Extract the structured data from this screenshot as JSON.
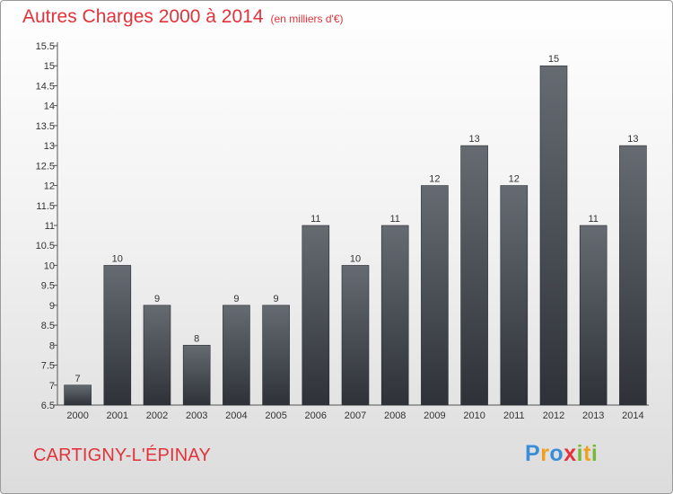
{
  "header": {
    "title": "Autres Charges 2000 à 2014",
    "subtitle": "(en milliers d'€)"
  },
  "footer": {
    "commune": "CARTIGNY-L'ÉPINAY",
    "logo": {
      "letters": [
        "P",
        "r",
        "o",
        "x",
        "i",
        "t",
        "i"
      ],
      "colors": [
        "#3a8ed8",
        "#f0a020",
        "#3a8ed8",
        "#e2333b",
        "#79b83a",
        "#f0a020",
        "#79b83a"
      ]
    }
  },
  "chart_data": {
    "type": "bar",
    "categories": [
      "2000",
      "2001",
      "2002",
      "2003",
      "2004",
      "2005",
      "2006",
      "2007",
      "2008",
      "2009",
      "2010",
      "2011",
      "2012",
      "2013",
      "2014"
    ],
    "values": [
      7,
      10,
      9,
      8,
      9,
      9,
      11,
      10,
      11,
      12,
      13,
      12,
      15,
      11,
      13
    ],
    "value_labels": [
      "7",
      "10",
      "9",
      "8",
      "9",
      "9",
      "11",
      "10",
      "11",
      "12",
      "13",
      "12",
      "15",
      "11",
      "13"
    ],
    "yticks": [
      "6.5",
      "7",
      "7.5",
      "8",
      "8.5",
      "9",
      "9.5",
      "10",
      "10.5",
      "11",
      "11.5",
      "12",
      "12.5",
      "13",
      "13.5",
      "14",
      "14.5",
      "15",
      "15.5"
    ],
    "ylim": [
      6.5,
      15.5
    ],
    "bar_color": "#4a4f55",
    "grid": false
  }
}
